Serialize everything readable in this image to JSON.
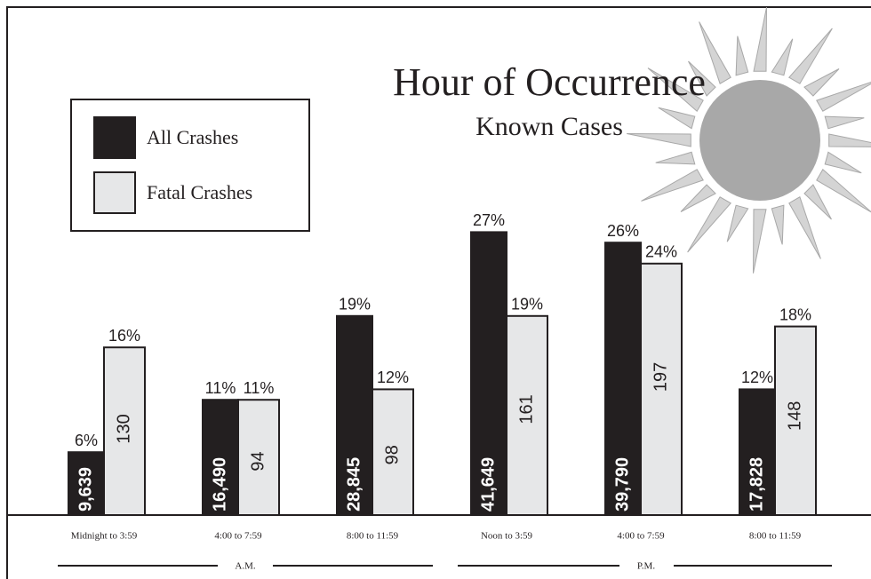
{
  "chart_data": {
    "type": "bar",
    "title": "Hour of Occurrence",
    "subtitle": "Known Cases",
    "categories": [
      "Midnight to 3:59",
      "4:00 to 7:59",
      "8:00 to 11:59",
      "Noon to 3:59",
      "4:00 to 7:59",
      "8:00 to 11:59"
    ],
    "period_labels": [
      "A.M.",
      "P.M."
    ],
    "series": [
      {
        "name": "All Crashes",
        "color": "#231f20",
        "values": [
          6,
          11,
          19,
          27,
          26,
          12
        ],
        "value_labels": [
          "6%",
          "11%",
          "19%",
          "27%",
          "26%",
          "12%"
        ],
        "counts": [
          9639,
          16490,
          28845,
          41649,
          39790,
          17828
        ],
        "count_labels": [
          "9,639",
          "16,490",
          "28,845",
          "41,649",
          "39,790",
          "17,828"
        ]
      },
      {
        "name": "Fatal Crashes",
        "color": "#e6e7e8",
        "values": [
          16,
          11,
          12,
          19,
          24,
          18
        ],
        "value_labels": [
          "16%",
          "11%",
          "12%",
          "19%",
          "24%",
          "18%"
        ],
        "counts": [
          130,
          94,
          98,
          161,
          197,
          148
        ]
      }
    ]
  }
}
